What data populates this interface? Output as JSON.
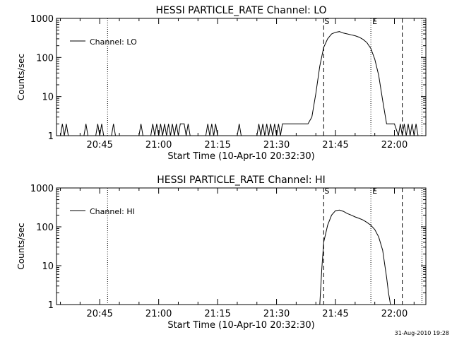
{
  "figure": {
    "footer_timestamp": "31-Aug-2010 19:28"
  },
  "chart_data": [
    {
      "type": "line",
      "title": "HESSI PARTICLE_RATE Channel: LO",
      "xlabel": "Start Time (10-Apr-10 20:32:30)",
      "ylabel": "Counts/sec",
      "y_scale": "log",
      "xlim": [
        "20:34",
        "22:08"
      ],
      "ylim": [
        1,
        1000
      ],
      "x_ticks": [
        "20:45",
        "21:00",
        "21:15",
        "21:30",
        "21:45",
        "22:00"
      ],
      "y_ticks": [
        "1",
        "10",
        "100",
        "1000"
      ],
      "legend": {
        "position": "top-left",
        "entries": [
          "Channel: LO"
        ]
      },
      "vlines_dotted": [
        "20:47",
        "21:54",
        "22:07"
      ],
      "vlines_dashed": [
        {
          "x": "21:42",
          "label": "S"
        },
        {
          "x": "22:02",
          "label": ""
        }
      ],
      "vline_markers": [
        {
          "x": "21:54",
          "label": "E"
        }
      ],
      "series": [
        {
          "name": "Channel: LO",
          "x": [
            "20:35",
            "20:35:30",
            "20:36",
            "20:36:30",
            "20:37",
            "20:41",
            "20:41:30",
            "20:42",
            "20:44",
            "20:44:30",
            "20:45",
            "20:45:30",
            "20:46",
            "20:48",
            "20:48:30",
            "20:49",
            "20:55",
            "20:55:30",
            "20:56",
            "20:58",
            "20:58:30",
            "20:59",
            "20:59:30",
            "21:00",
            "21:00:30",
            "21:01",
            "21:01:30",
            "21:02",
            "21:02:30",
            "21:03",
            "21:03:30",
            "21:04",
            "21:04:30",
            "21:05",
            "21:05:30",
            "21:06",
            "21:06:30",
            "21:07",
            "21:07:30",
            "21:08",
            "21:10",
            "21:12",
            "21:12:30",
            "21:13",
            "21:13:30",
            "21:14",
            "21:14:30",
            "21:15",
            "21:20",
            "21:20:30",
            "21:21",
            "21:25",
            "21:25:30",
            "21:26",
            "21:26:30",
            "21:27",
            "21:27:30",
            "21:28",
            "21:28:30",
            "21:29",
            "21:29:30",
            "21:30",
            "21:30:30",
            "21:31",
            "21:31:30",
            "21:32",
            "21:32:30",
            "21:33",
            "21:33:30",
            "21:34",
            "21:34:30",
            "21:35",
            "21:36",
            "21:37",
            "21:38",
            "21:39",
            "21:40",
            "21:41",
            "21:42",
            "21:43",
            "21:44",
            "21:45",
            "21:46",
            "21:47",
            "21:48",
            "21:49",
            "21:50",
            "21:51",
            "21:52",
            "21:53",
            "21:54",
            "21:55",
            "21:56",
            "21:57",
            "21:58",
            "21:59",
            "22:00",
            "22:01",
            "22:01:30",
            "22:02",
            "22:02:30",
            "22:03",
            "22:03:30",
            "22:04",
            "22:04:30",
            "22:05",
            "22:05:30",
            "22:06"
          ],
          "values": [
            1,
            2,
            1,
            2,
            1,
            1,
            2,
            1,
            1,
            2,
            1,
            2,
            1,
            1,
            2,
            1,
            1,
            2,
            1,
            1,
            2,
            1,
            2,
            1,
            2,
            1,
            2,
            1,
            2,
            1,
            2,
            1,
            2,
            1,
            2,
            2,
            2,
            1,
            2,
            1,
            1,
            1,
            2,
            1,
            2,
            1,
            2,
            1,
            1,
            2,
            1,
            1,
            2,
            1,
            2,
            1,
            2,
            1,
            2,
            1,
            2,
            1,
            2,
            1,
            2,
            2,
            2,
            2,
            2,
            2,
            2,
            2,
            2,
            2,
            2,
            3,
            12,
            60,
            180,
            300,
            400,
            440,
            460,
            420,
            400,
            380,
            360,
            330,
            290,
            240,
            170,
            90,
            35,
            8,
            2,
            2,
            2,
            1,
            2,
            1,
            2,
            1,
            2,
            1,
            2,
            1,
            2,
            1
          ]
        }
      ]
    },
    {
      "type": "line",
      "title": "HESSI PARTICLE_RATE Channel: HI",
      "xlabel": "Start Time (10-Apr-10 20:32:30)",
      "ylabel": "Counts/sec",
      "y_scale": "log",
      "xlim": [
        "20:34",
        "22:08"
      ],
      "ylim": [
        1,
        1000
      ],
      "x_ticks": [
        "20:45",
        "21:00",
        "21:15",
        "21:30",
        "21:45",
        "22:00"
      ],
      "y_ticks": [
        "1",
        "10",
        "100",
        "1000"
      ],
      "legend": {
        "position": "top-left",
        "entries": [
          "Channel: HI"
        ]
      },
      "vlines_dotted": [
        "20:47",
        "21:54",
        "22:07"
      ],
      "vlines_dashed": [
        {
          "x": "21:42",
          "label": "S"
        },
        {
          "x": "22:02",
          "label": ""
        }
      ],
      "vline_markers": [
        {
          "x": "21:54",
          "label": "E"
        }
      ],
      "series": [
        {
          "name": "Channel: HI",
          "x": [
            "21:41",
            "21:41:30",
            "21:42",
            "21:43",
            "21:44",
            "21:45",
            "21:46",
            "21:47",
            "21:48",
            "21:49",
            "21:50",
            "21:51",
            "21:52",
            "21:53",
            "21:54",
            "21:55",
            "21:56",
            "21:57",
            "21:58",
            "21:58:30",
            "21:59"
          ],
          "values": [
            1,
            8,
            40,
            110,
            200,
            260,
            270,
            250,
            220,
            200,
            180,
            165,
            150,
            130,
            110,
            85,
            55,
            25,
            5,
            2,
            1
          ]
        }
      ]
    }
  ]
}
